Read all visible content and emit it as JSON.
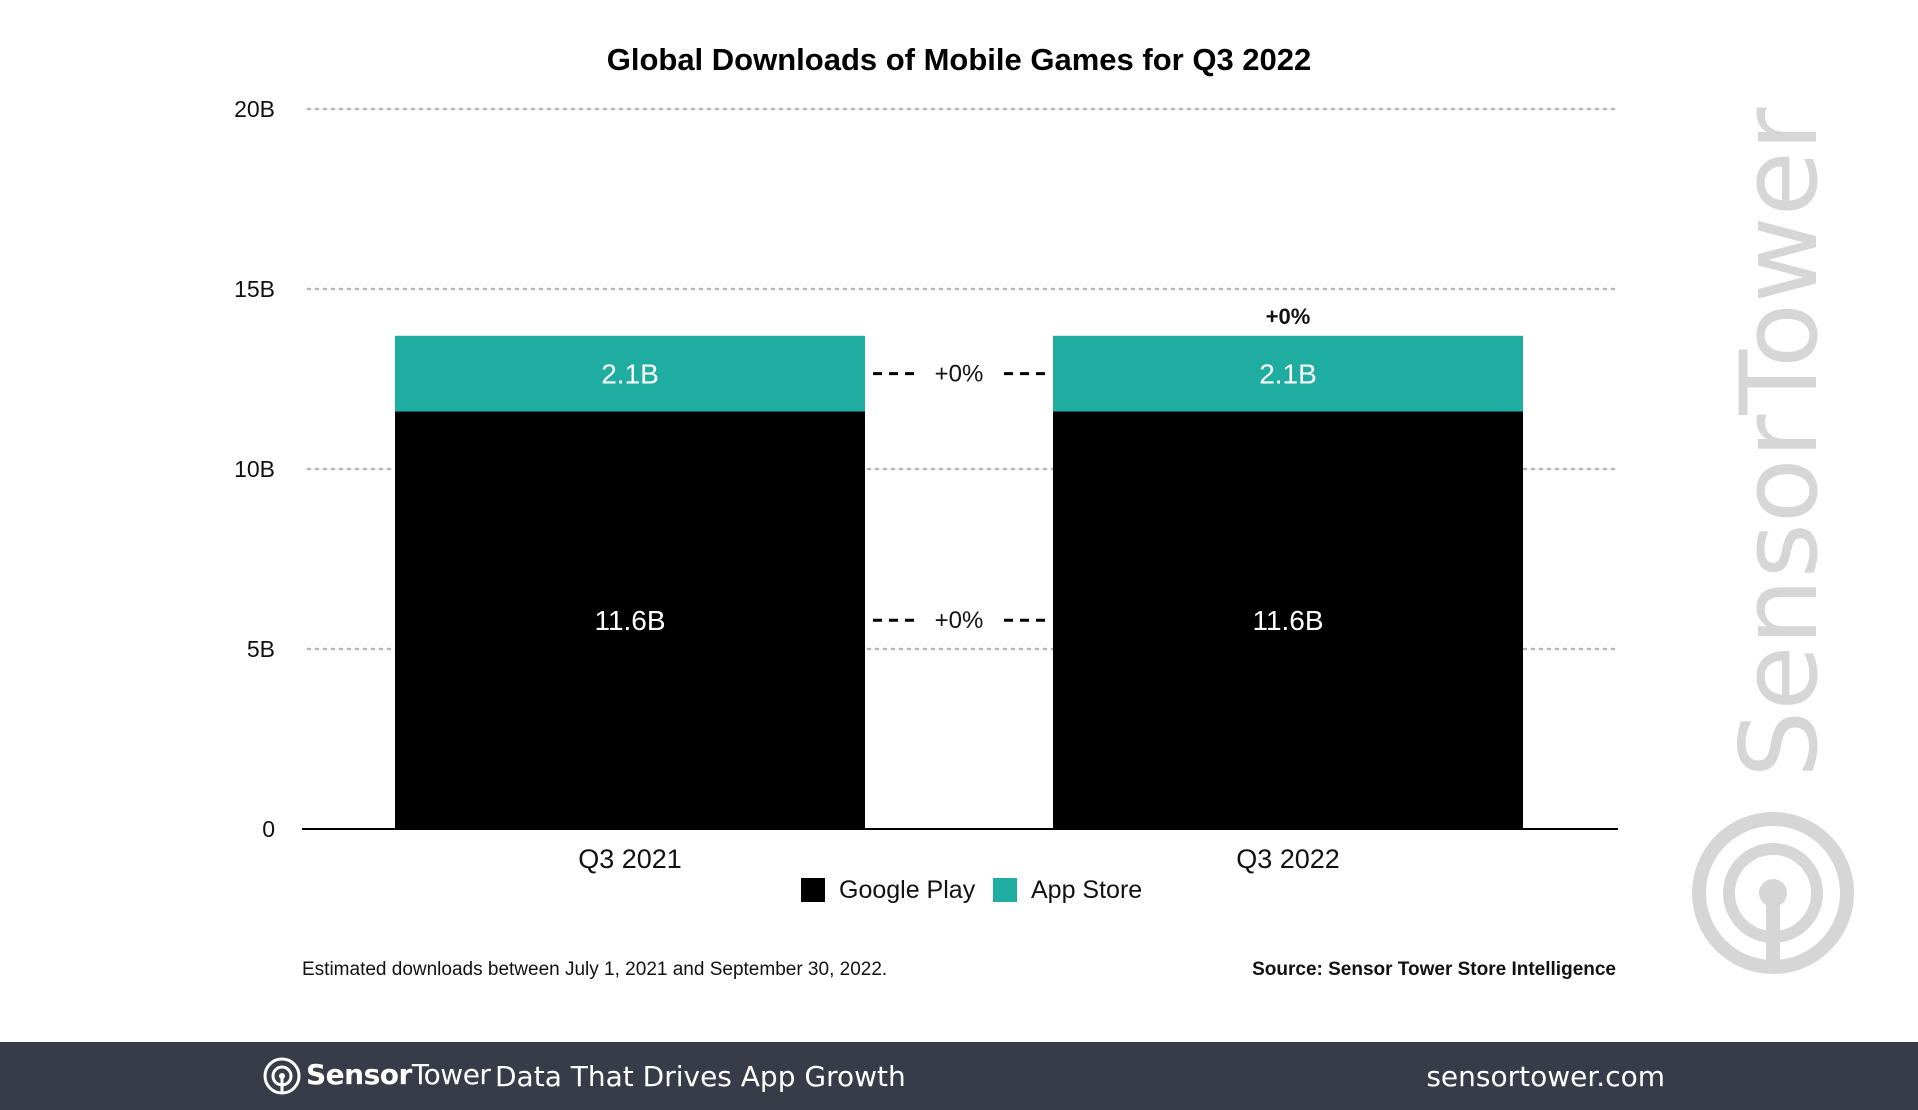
{
  "chart_data": {
    "type": "bar",
    "stacked": true,
    "title": "Global Downloads of Mobile Games for Q3 2022",
    "categories": [
      "Q3 2021",
      "Q3 2022"
    ],
    "series": [
      {
        "name": "Google Play",
        "color": "#000000",
        "values": [
          11.6,
          11.6
        ],
        "labels": [
          "11.6B",
          "11.6B"
        ]
      },
      {
        "name": "App Store",
        "color": "#1fada2",
        "values": [
          2.1,
          2.1
        ],
        "labels": [
          "2.1B",
          "2.1B"
        ]
      }
    ],
    "ylim": [
      0,
      20
    ],
    "yticks": [
      {
        "value": 0,
        "label": "0"
      },
      {
        "value": 5,
        "label": "5B"
      },
      {
        "value": 10,
        "label": "10B"
      },
      {
        "value": 15,
        "label": "15B"
      },
      {
        "value": 20,
        "label": "20B"
      }
    ],
    "series_changes": [
      "+0%",
      "+0%"
    ],
    "total_change": "+0%",
    "legend_position": "bottom",
    "grid": true
  },
  "footnote": "Estimated downloads between July 1, 2021 and September 30, 2022.",
  "source": "Source: Sensor Tower Store Intelligence",
  "watermark": "SensorTower",
  "footer": {
    "brand_bold": "Sensor",
    "brand_regular": "Tower",
    "tagline": "Data That Drives App Growth",
    "website": "sensortower.com"
  }
}
